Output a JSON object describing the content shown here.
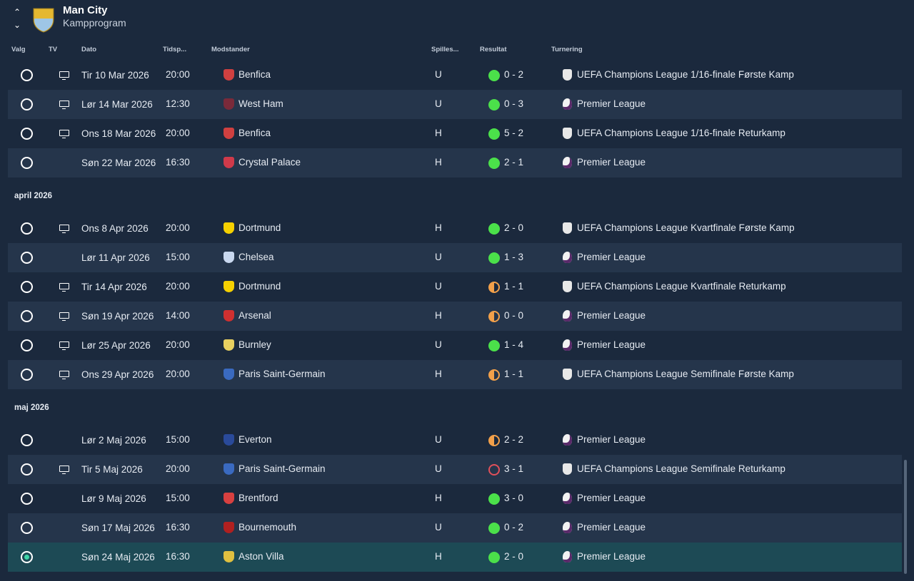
{
  "header": {
    "title": "Man City",
    "subtitle": "Kampprogram"
  },
  "columns": {
    "select": "Valg",
    "tv": "TV",
    "date": "Dato",
    "time": "Tidsp...",
    "opponent": "Modstander",
    "venue": "Spilles...",
    "result": "Resultat",
    "competition": "Turnering"
  },
  "colors": {
    "win": "#4be04a",
    "draw": "#f2a04a",
    "loss": "#e0505a",
    "selected": "#1d4a55"
  },
  "sections": [
    {
      "label": "",
      "rows": [
        {
          "tv": true,
          "date": "Tir 10 Mar 2026",
          "time": "20:00",
          "opponent": "Benfica",
          "badge": "#d04040",
          "venue": "U",
          "outcome": "w",
          "score": "0 - 2",
          "comp": "cl",
          "competition": "UEFA Champions League 1/16-finale Første Kamp"
        },
        {
          "tv": true,
          "date": "Lør 14 Mar 2026",
          "time": "12:30",
          "opponent": "West Ham",
          "badge": "#7a2a3a",
          "venue": "U",
          "outcome": "w",
          "score": "0 - 3",
          "comp": "pl",
          "competition": "Premier League"
        },
        {
          "tv": true,
          "date": "Ons 18 Mar 2026",
          "time": "20:00",
          "opponent": "Benfica",
          "badge": "#d04040",
          "venue": "H",
          "outcome": "w",
          "score": "5 - 2",
          "comp": "cl",
          "competition": "UEFA Champions League 1/16-finale Returkamp"
        },
        {
          "tv": false,
          "date": "Søn 22 Mar 2026",
          "time": "16:30",
          "opponent": "Crystal Palace",
          "badge": "#d03a4a",
          "venue": "H",
          "outcome": "w",
          "score": "2 - 1",
          "comp": "pl",
          "competition": "Premier League"
        }
      ]
    },
    {
      "label": "april 2026",
      "rows": [
        {
          "tv": true,
          "date": "Ons 8 Apr 2026",
          "time": "20:00",
          "opponent": "Dortmund",
          "badge": "#f5d000",
          "venue": "H",
          "outcome": "w",
          "score": "2 - 0",
          "comp": "cl",
          "competition": "UEFA Champions League Kvartfinale Første Kamp"
        },
        {
          "tv": false,
          "date": "Lør 11 Apr 2026",
          "time": "15:00",
          "opponent": "Chelsea",
          "badge": "#c9d8ef",
          "venue": "U",
          "outcome": "w",
          "score": "1 - 3",
          "comp": "pl",
          "competition": "Premier League"
        },
        {
          "tv": true,
          "date": "Tir 14 Apr 2026",
          "time": "20:00",
          "opponent": "Dortmund",
          "badge": "#f5d000",
          "venue": "U",
          "outcome": "d",
          "score": "1 - 1",
          "comp": "cl",
          "competition": "UEFA Champions League Kvartfinale Returkamp"
        },
        {
          "tv": true,
          "date": "Søn 19 Apr 2026",
          "time": "14:00",
          "opponent": "Arsenal",
          "badge": "#d03030",
          "venue": "H",
          "outcome": "d",
          "score": "0 - 0",
          "comp": "pl",
          "competition": "Premier League"
        },
        {
          "tv": true,
          "date": "Lør 25 Apr 2026",
          "time": "20:00",
          "opponent": "Burnley",
          "badge": "#e8d060",
          "venue": "U",
          "outcome": "w",
          "score": "1 - 4",
          "comp": "pl",
          "competition": "Premier League"
        },
        {
          "tv": true,
          "date": "Ons 29 Apr 2026",
          "time": "20:00",
          "opponent": "Paris Saint-Germain",
          "badge": "#3a6ac0",
          "venue": "H",
          "outcome": "d",
          "score": "1 - 1",
          "comp": "cl",
          "competition": "UEFA Champions League Semifinale Første Kamp"
        }
      ]
    },
    {
      "label": "maj 2026",
      "rows": [
        {
          "tv": false,
          "date": "Lør 2 Maj 2026",
          "time": "15:00",
          "opponent": "Everton",
          "badge": "#2a4a9a",
          "venue": "U",
          "outcome": "d",
          "score": "2 - 2",
          "comp": "pl",
          "competition": "Premier League"
        },
        {
          "tv": true,
          "date": "Tir 5 Maj 2026",
          "time": "20:00",
          "opponent": "Paris Saint-Germain",
          "badge": "#3a6ac0",
          "venue": "U",
          "outcome": "l",
          "score": "3 - 1",
          "comp": "cl",
          "competition": "UEFA Champions League Semifinale Returkamp"
        },
        {
          "tv": false,
          "date": "Lør 9 Maj 2026",
          "time": "15:00",
          "opponent": "Brentford",
          "badge": "#d84040",
          "venue": "H",
          "outcome": "w",
          "score": "3 - 0",
          "comp": "pl",
          "competition": "Premier League"
        },
        {
          "tv": false,
          "date": "Søn 17 Maj 2026",
          "time": "16:30",
          "opponent": "Bournemouth",
          "badge": "#b02020",
          "venue": "U",
          "outcome": "w",
          "score": "0 - 2",
          "comp": "pl",
          "competition": "Premier League"
        },
        {
          "tv": false,
          "date": "Søn 24 Maj 2026",
          "time": "16:30",
          "opponent": "Aston Villa",
          "badge": "#e0c040",
          "venue": "H",
          "outcome": "w",
          "score": "2 - 0",
          "comp": "pl",
          "competition": "Premier League",
          "selected": true
        }
      ]
    }
  ]
}
